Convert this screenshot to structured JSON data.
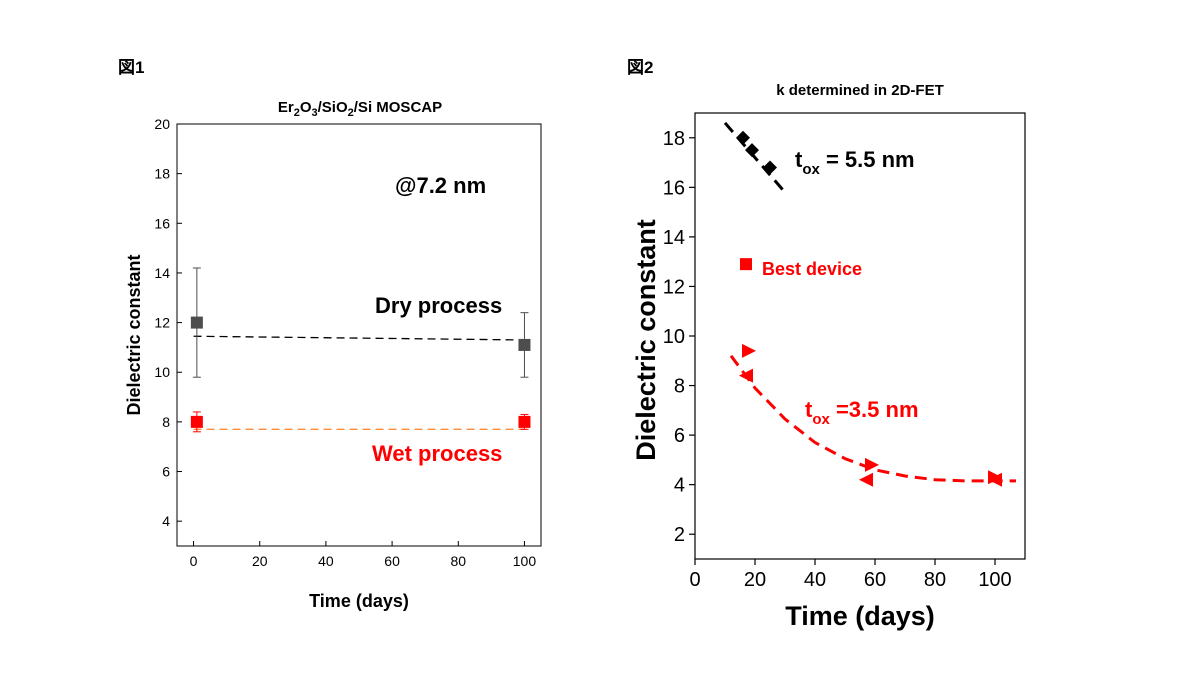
{
  "figure1": {
    "label": "図1",
    "title_parts": [
      "Er",
      "2",
      "O",
      "3",
      "/SiO",
      "2",
      "/Si MOSCAP"
    ],
    "annotation": "@7.2 nm",
    "dry_label": "Dry process",
    "wet_label": "Wet process",
    "colors": {
      "dry": "#4d4d4d",
      "wet": "#ff0000",
      "dry_fit": "#000000",
      "wet_fit": "#ff8c3a"
    }
  },
  "figure2": {
    "label": "図2",
    "title": "k determined in 2D-FET",
    "t55_parts": [
      "t",
      "ox",
      " = 5.5 nm"
    ],
    "t35_parts": [
      "t",
      "ox",
      " =3.5 nm"
    ],
    "best_label": "Best device",
    "colors": {
      "black": "#000000",
      "red": "#ff0000"
    }
  },
  "chart_data": [
    {
      "type": "scatter",
      "title": "Er2O3/SiO2/Si MOSCAP",
      "xlabel": "Time (days)",
      "ylabel": "Dielectric constant",
      "xlim": [
        -5,
        105
      ],
      "ylim": [
        3,
        20
      ],
      "xticks": [
        0,
        20,
        40,
        60,
        80,
        100
      ],
      "yticks": [
        4,
        6,
        8,
        10,
        12,
        14,
        16,
        18,
        20
      ],
      "grid": false,
      "series": [
        {
          "name": "Dry process",
          "x": [
            1,
            100
          ],
          "y": [
            12.0,
            11.1
          ],
          "yerr": [
            2.2,
            1.3
          ],
          "fit": {
            "x": [
              0,
              100
            ],
            "y": [
              11.45,
              11.3
            ]
          }
        },
        {
          "name": "Wet process",
          "x": [
            1,
            100
          ],
          "y": [
            8.0,
            8.0
          ],
          "yerr": [
            0.4,
            0.3
          ],
          "fit": {
            "x": [
              0,
              100
            ],
            "y": [
              7.7,
              7.7
            ]
          }
        }
      ]
    },
    {
      "type": "scatter",
      "title": "k determined in 2D-FET",
      "xlabel": "Time (days)",
      "ylabel": "Dielectric constant",
      "xlim": [
        0,
        110
      ],
      "ylim": [
        1,
        19
      ],
      "xticks": [
        0,
        20,
        40,
        60,
        80,
        100
      ],
      "yticks": [
        2,
        4,
        6,
        8,
        10,
        12,
        14,
        16,
        18
      ],
      "grid": false,
      "series": [
        {
          "name": "tox = 5.5 nm",
          "marker": "diamond",
          "x": [
            16,
            19,
            25
          ],
          "y": [
            18.0,
            17.5,
            16.8
          ],
          "fit": {
            "x": [
              10,
              30
            ],
            "y": [
              18.6,
              15.8
            ]
          }
        },
        {
          "name": "tox =3.5 nm (right triangles)",
          "marker": "triangle-right",
          "x": [
            18,
            59,
            100
          ],
          "y": [
            9.4,
            4.8,
            4.3
          ]
        },
        {
          "name": "tox =3.5 nm (left triangles)",
          "marker": "triangle-left",
          "x": [
            17,
            57,
            100
          ],
          "y": [
            8.4,
            4.2,
            4.2
          ]
        },
        {
          "name": "Best device",
          "marker": "square",
          "x": [
            17
          ],
          "y": [
            12.9
          ]
        }
      ],
      "fit_curve": {
        "x": [
          12,
          20,
          30,
          40,
          50,
          60,
          70,
          80,
          90,
          100,
          107
        ],
        "y": [
          9.2,
          7.9,
          6.65,
          5.7,
          5.05,
          4.6,
          4.35,
          4.2,
          4.15,
          4.15,
          4.15
        ]
      }
    }
  ]
}
